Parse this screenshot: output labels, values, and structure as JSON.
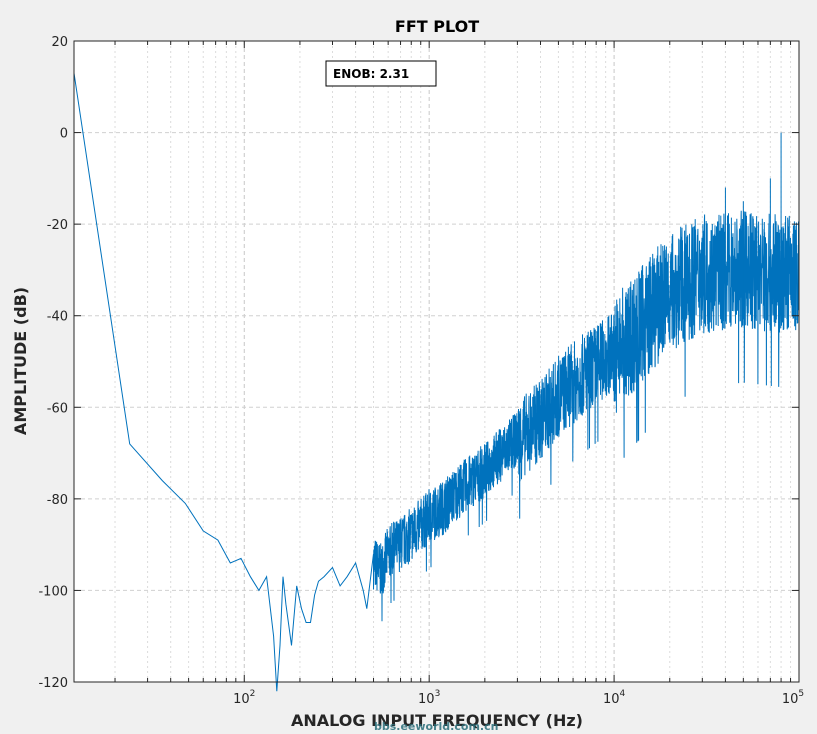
{
  "chart_data": {
    "type": "line",
    "title": "FFT PLOT",
    "xlabel": "ANALOG INPUT FREQUENCY (Hz)",
    "ylabel": "AMPLITUDE (dB)",
    "xscale": "log",
    "xlim": [
      12,
      100000
    ],
    "ylim": [
      -120,
      20
    ],
    "grid": "on",
    "x_ticks": [
      {
        "base": "10",
        "exp": "2",
        "value": 100
      },
      {
        "base": "10",
        "exp": "3",
        "value": 1000
      },
      {
        "base": "10",
        "exp": "4",
        "value": 10000
      },
      {
        "base": "10",
        "exp": "5",
        "value": 100000
      }
    ],
    "y_ticks": [
      {
        "label": "20",
        "value": 20
      },
      {
        "label": "0",
        "value": 0
      },
      {
        "label": "-20",
        "value": -20
      },
      {
        "label": "-40",
        "value": -40
      },
      {
        "label": "-60",
        "value": -60
      },
      {
        "label": "-80",
        "value": -80
      },
      {
        "label": "-100",
        "value": -100
      },
      {
        "label": "-120",
        "value": -120
      }
    ],
    "annotation": {
      "text": "ENOB: 2.31"
    },
    "series": [
      {
        "color": "#0072bd",
        "points": [
          [
            12,
            13
          ],
          [
            24,
            -68
          ],
          [
            36,
            -76
          ],
          [
            48,
            -81
          ],
          [
            60,
            -87
          ],
          [
            72,
            -89
          ],
          [
            84,
            -94
          ],
          [
            96,
            -93
          ],
          [
            108,
            -97
          ],
          [
            120,
            -100
          ],
          [
            132,
            -97
          ],
          [
            144,
            -110
          ],
          [
            150,
            -122
          ],
          [
            156,
            -112
          ],
          [
            162,
            -97
          ],
          [
            168,
            -103
          ],
          [
            180,
            -112
          ],
          [
            192,
            -99
          ],
          [
            204,
            -104
          ],
          [
            216,
            -107
          ],
          [
            228,
            -107
          ],
          [
            240,
            -101
          ],
          [
            252,
            -98
          ],
          [
            270,
            -97
          ],
          [
            300,
            -95
          ],
          [
            330,
            -99
          ],
          [
            360,
            -97
          ],
          [
            400,
            -94
          ],
          [
            440,
            -100
          ],
          [
            460,
            -104
          ],
          [
            500,
            -92
          ],
          [
            550,
            -94
          ],
          [
            600,
            -90
          ],
          [
            700,
            -88
          ],
          [
            800,
            -86
          ],
          [
            900,
            -84
          ],
          [
            1000,
            -82
          ],
          [
            1200,
            -80
          ],
          [
            1400,
            -77
          ],
          [
            1600,
            -75
          ],
          [
            2000,
            -72
          ],
          [
            2500,
            -68
          ],
          [
            3000,
            -65
          ],
          [
            4000,
            -60
          ],
          [
            5000,
            -55
          ],
          [
            6000,
            -52
          ],
          [
            8000,
            -48
          ],
          [
            10000,
            -45
          ],
          [
            14000,
            -38
          ],
          [
            20000,
            -31
          ],
          [
            30000,
            -27
          ],
          [
            50000,
            -26
          ],
          [
            80000,
            -27
          ],
          [
            100000,
            -27
          ]
        ]
      }
    ],
    "spikes": [
      [
        80000,
        0
      ],
      [
        70000,
        -10
      ],
      [
        50000,
        -15
      ],
      [
        40000,
        -12
      ]
    ]
  },
  "watermark": "bbs.eeworld.com.cn"
}
